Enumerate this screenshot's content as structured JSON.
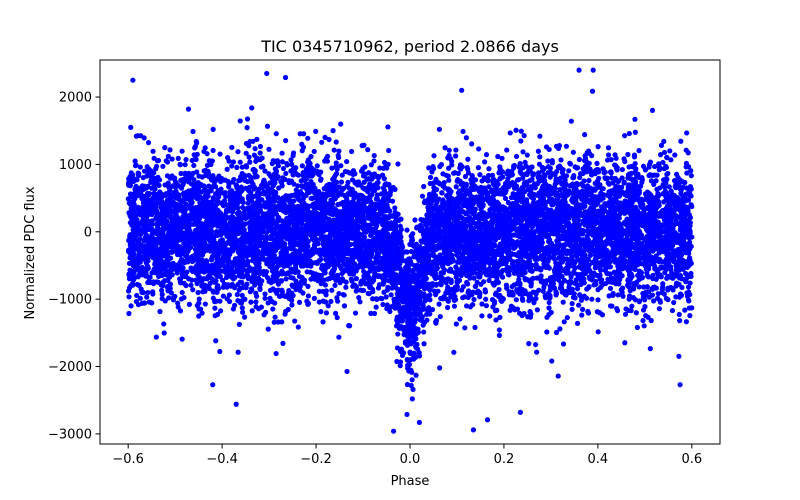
{
  "chart_data": {
    "type": "scatter",
    "title": "TIC 0345710962, period 2.0866 days",
    "xlabel": "Phase",
    "ylabel": "Normalized PDC flux",
    "xlim": [
      -0.66,
      0.66
    ],
    "ylim": [
      -3150,
      2550
    ],
    "xticks": [
      -0.6,
      -0.4,
      -0.2,
      0.0,
      0.2,
      0.4,
      0.6
    ],
    "xtick_labels": [
      "−0.6",
      "−0.4",
      "−0.2",
      "0.0",
      "0.2",
      "0.4",
      "0.6"
    ],
    "yticks": [
      -3000,
      -2000,
      -1000,
      0,
      1000,
      2000
    ],
    "ytick_labels": [
      "−3000",
      "−2000",
      "−1000",
      "0",
      "1000",
      "2000"
    ],
    "grid": false,
    "legend": "none",
    "series": [
      {
        "name": "flux",
        "color": "#0000ff",
        "marker": "circle",
        "description": "Phase-folded light curve, approx. 9000 points spanning phase -0.6 to 0.6 with baseline scatter ~±700 and a transit dip centered at phase 0.0 reaching about -1400.",
        "phase_min": -0.6,
        "phase_max": 0.6,
        "baseline_mean": 0,
        "baseline_scatter_sigma": 500,
        "transit_center": 0.0,
        "transit_depth": -1200,
        "transit_halfwidth": 0.04,
        "outliers": [
          {
            "x": -0.59,
            "y": 2250
          },
          {
            "x": -0.305,
            "y": 2350
          },
          {
            "x": -0.265,
            "y": 2290
          },
          {
            "x": 0.36,
            "y": 2400
          },
          {
            "x": 0.39,
            "y": 2400
          },
          {
            "x": 0.11,
            "y": 2100
          },
          {
            "x": -0.42,
            "y": -2270
          },
          {
            "x": -0.37,
            "y": -2560
          },
          {
            "x": -0.035,
            "y": -2960
          },
          {
            "x": 0.02,
            "y": -2830
          },
          {
            "x": 0.135,
            "y": -2940
          },
          {
            "x": 0.165,
            "y": -2790
          },
          {
            "x": 0.235,
            "y": -2680
          },
          {
            "x": 0.575,
            "y": -2270
          }
        ]
      }
    ]
  }
}
